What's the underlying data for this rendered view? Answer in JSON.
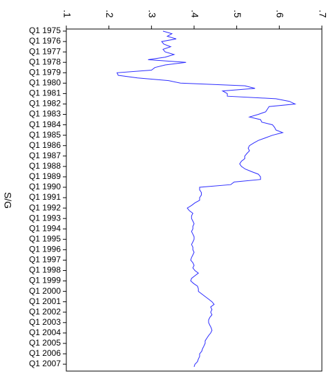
{
  "chart_data": {
    "type": "line",
    "y_label": "S/G",
    "color": "#2b2bff",
    "xlim": [
      1974.8,
      2007.66
    ],
    "ylim": [
      0.1,
      0.7
    ],
    "yticks": [
      {
        "value": 0.1,
        "label": ".1"
      },
      {
        "value": 0.2,
        "label": ".2"
      },
      {
        "value": 0.3,
        "label": ".3"
      },
      {
        "value": 0.4,
        "label": ".4"
      },
      {
        "value": 0.5,
        "label": ".5"
      },
      {
        "value": 0.6,
        "label": ".6"
      },
      {
        "value": 0.7,
        "label": ".7"
      }
    ],
    "xticks": [
      {
        "value": 1975,
        "label": "Q1 1975"
      },
      {
        "value": 1976,
        "label": "Q1 1976"
      },
      {
        "value": 1977,
        "label": "Q1 1977"
      },
      {
        "value": 1978,
        "label": "Q1 1978"
      },
      {
        "value": 1979,
        "label": "Q1 1979"
      },
      {
        "value": 1980,
        "label": "Q1 1980"
      },
      {
        "value": 1981,
        "label": "Q1 1981"
      },
      {
        "value": 1982,
        "label": "Q1 1982"
      },
      {
        "value": 1983,
        "label": "Q1 1983"
      },
      {
        "value": 1984,
        "label": "Q1 1984"
      },
      {
        "value": 1985,
        "label": "Q1 1985"
      },
      {
        "value": 1986,
        "label": "Q1 1986"
      },
      {
        "value": 1987,
        "label": "Q1 1987"
      },
      {
        "value": 1988,
        "label": "Q1 1988"
      },
      {
        "value": 1989,
        "label": "Q1 1989"
      },
      {
        "value": 1990,
        "label": "Q1 1990"
      },
      {
        "value": 1991,
        "label": "Q1 1991"
      },
      {
        "value": 1992,
        "label": "Q1 1992"
      },
      {
        "value": 1993,
        "label": "Q1 1993"
      },
      {
        "value": 1994,
        "label": "Q1 1994"
      },
      {
        "value": 1995,
        "label": "Q1 1995"
      },
      {
        "value": 1996,
        "label": "Q1 1996"
      },
      {
        "value": 1997,
        "label": "Q1 1997"
      },
      {
        "value": 1998,
        "label": "Q1 1998"
      },
      {
        "value": 1999,
        "label": "Q1 1999"
      },
      {
        "value": 2000,
        "label": "Q1 2000"
      },
      {
        "value": 2001,
        "label": "Q1 2001"
      },
      {
        "value": 2002,
        "label": "Q1 2002"
      },
      {
        "value": 2003,
        "label": "Q1 2003"
      },
      {
        "value": 2004,
        "label": "Q1 2004"
      },
      {
        "value": 2005,
        "label": "Q1 2005"
      },
      {
        "value": 2006,
        "label": "Q1 2006"
      },
      {
        "value": 2007,
        "label": "Q1 2007"
      }
    ],
    "x": [
      1975,
      1975.25,
      1975.5,
      1975.75,
      1976,
      1976.25,
      1976.5,
      1976.75,
      1977,
      1977.25,
      1977.5,
      1977.75,
      1978,
      1978.25,
      1978.5,
      1978.75,
      1979,
      1979.25,
      1979.5,
      1979.75,
      1980,
      1980.25,
      1980.5,
      1980.75,
      1981,
      1981.25,
      1981.5,
      1981.75,
      1982,
      1982.25,
      1982.5,
      1982.75,
      1983,
      1983.25,
      1983.5,
      1983.75,
      1984,
      1984.25,
      1984.5,
      1984.75,
      1985,
      1985.25,
      1985.5,
      1985.75,
      1986,
      1986.25,
      1986.5,
      1986.75,
      1987,
      1987.25,
      1987.5,
      1987.75,
      1988,
      1988.25,
      1988.5,
      1988.75,
      1989,
      1989.25,
      1989.5,
      1989.75,
      1990,
      1990.25,
      1990.5,
      1990.75,
      1991,
      1991.25,
      1991.5,
      1991.75,
      1992,
      1992.25,
      1992.5,
      1992.75,
      1993,
      1993.25,
      1993.5,
      1993.75,
      1994,
      1994.25,
      1994.5,
      1994.75,
      1995,
      1995.25,
      1995.5,
      1995.75,
      1996,
      1996.25,
      1996.5,
      1996.75,
      1997,
      1997.25,
      1997.5,
      1997.75,
      1998,
      1998.25,
      1998.5,
      1998.75,
      1999,
      1999.25,
      1999.5,
      1999.75,
      2000,
      2000.25,
      2000.5,
      2000.75,
      2001,
      2001.25,
      2001.5,
      2001.75,
      2002,
      2002.25,
      2002.5,
      2002.75,
      2003,
      2003.25,
      2003.5,
      2003.75,
      2004,
      2004.25,
      2004.5,
      2004.75,
      2005,
      2005.25,
      2005.5,
      2005.75,
      2006,
      2006.25,
      2006.5,
      2006.75,
      2007,
      2007.25
    ],
    "values": [
      0.327,
      0.348,
      0.337,
      0.358,
      0.324,
      0.329,
      0.345,
      0.327,
      0.332,
      0.353,
      0.332,
      0.292,
      0.381,
      0.332,
      0.308,
      0.3,
      0.219,
      0.222,
      0.267,
      0.34,
      0.368,
      0.519,
      0.543,
      0.467,
      0.478,
      0.478,
      0.592,
      0.624,
      0.637,
      0.576,
      0.572,
      0.568,
      0.551,
      0.53,
      0.556,
      0.559,
      0.584,
      0.589,
      0.592,
      0.608,
      0.584,
      0.568,
      0.551,
      0.54,
      0.53,
      0.527,
      0.53,
      0.524,
      0.519,
      0.519,
      0.511,
      0.507,
      0.511,
      0.52,
      0.535,
      0.551,
      0.556,
      0.556,
      0.494,
      0.486,
      0.413,
      0.413,
      0.417,
      0.417,
      0.413,
      0.413,
      0.402,
      0.394,
      0.384,
      0.389,
      0.397,
      0.394,
      0.394,
      0.397,
      0.4,
      0.397,
      0.397,
      0.394,
      0.397,
      0.4,
      0.4,
      0.397,
      0.394,
      0.397,
      0.397,
      0.4,
      0.397,
      0.394,
      0.392,
      0.397,
      0.4,
      0.397,
      0.402,
      0.41,
      0.402,
      0.394,
      0.392,
      0.399,
      0.408,
      0.41,
      0.41,
      0.418,
      0.426,
      0.434,
      0.442,
      0.447,
      0.439,
      0.442,
      0.439,
      0.442,
      0.437,
      0.434,
      0.434,
      0.437,
      0.44,
      0.442,
      0.439,
      0.434,
      0.43,
      0.426,
      0.426,
      0.423,
      0.42,
      0.418,
      0.413,
      0.413,
      0.41,
      0.408,
      0.402,
      0.4
    ]
  }
}
